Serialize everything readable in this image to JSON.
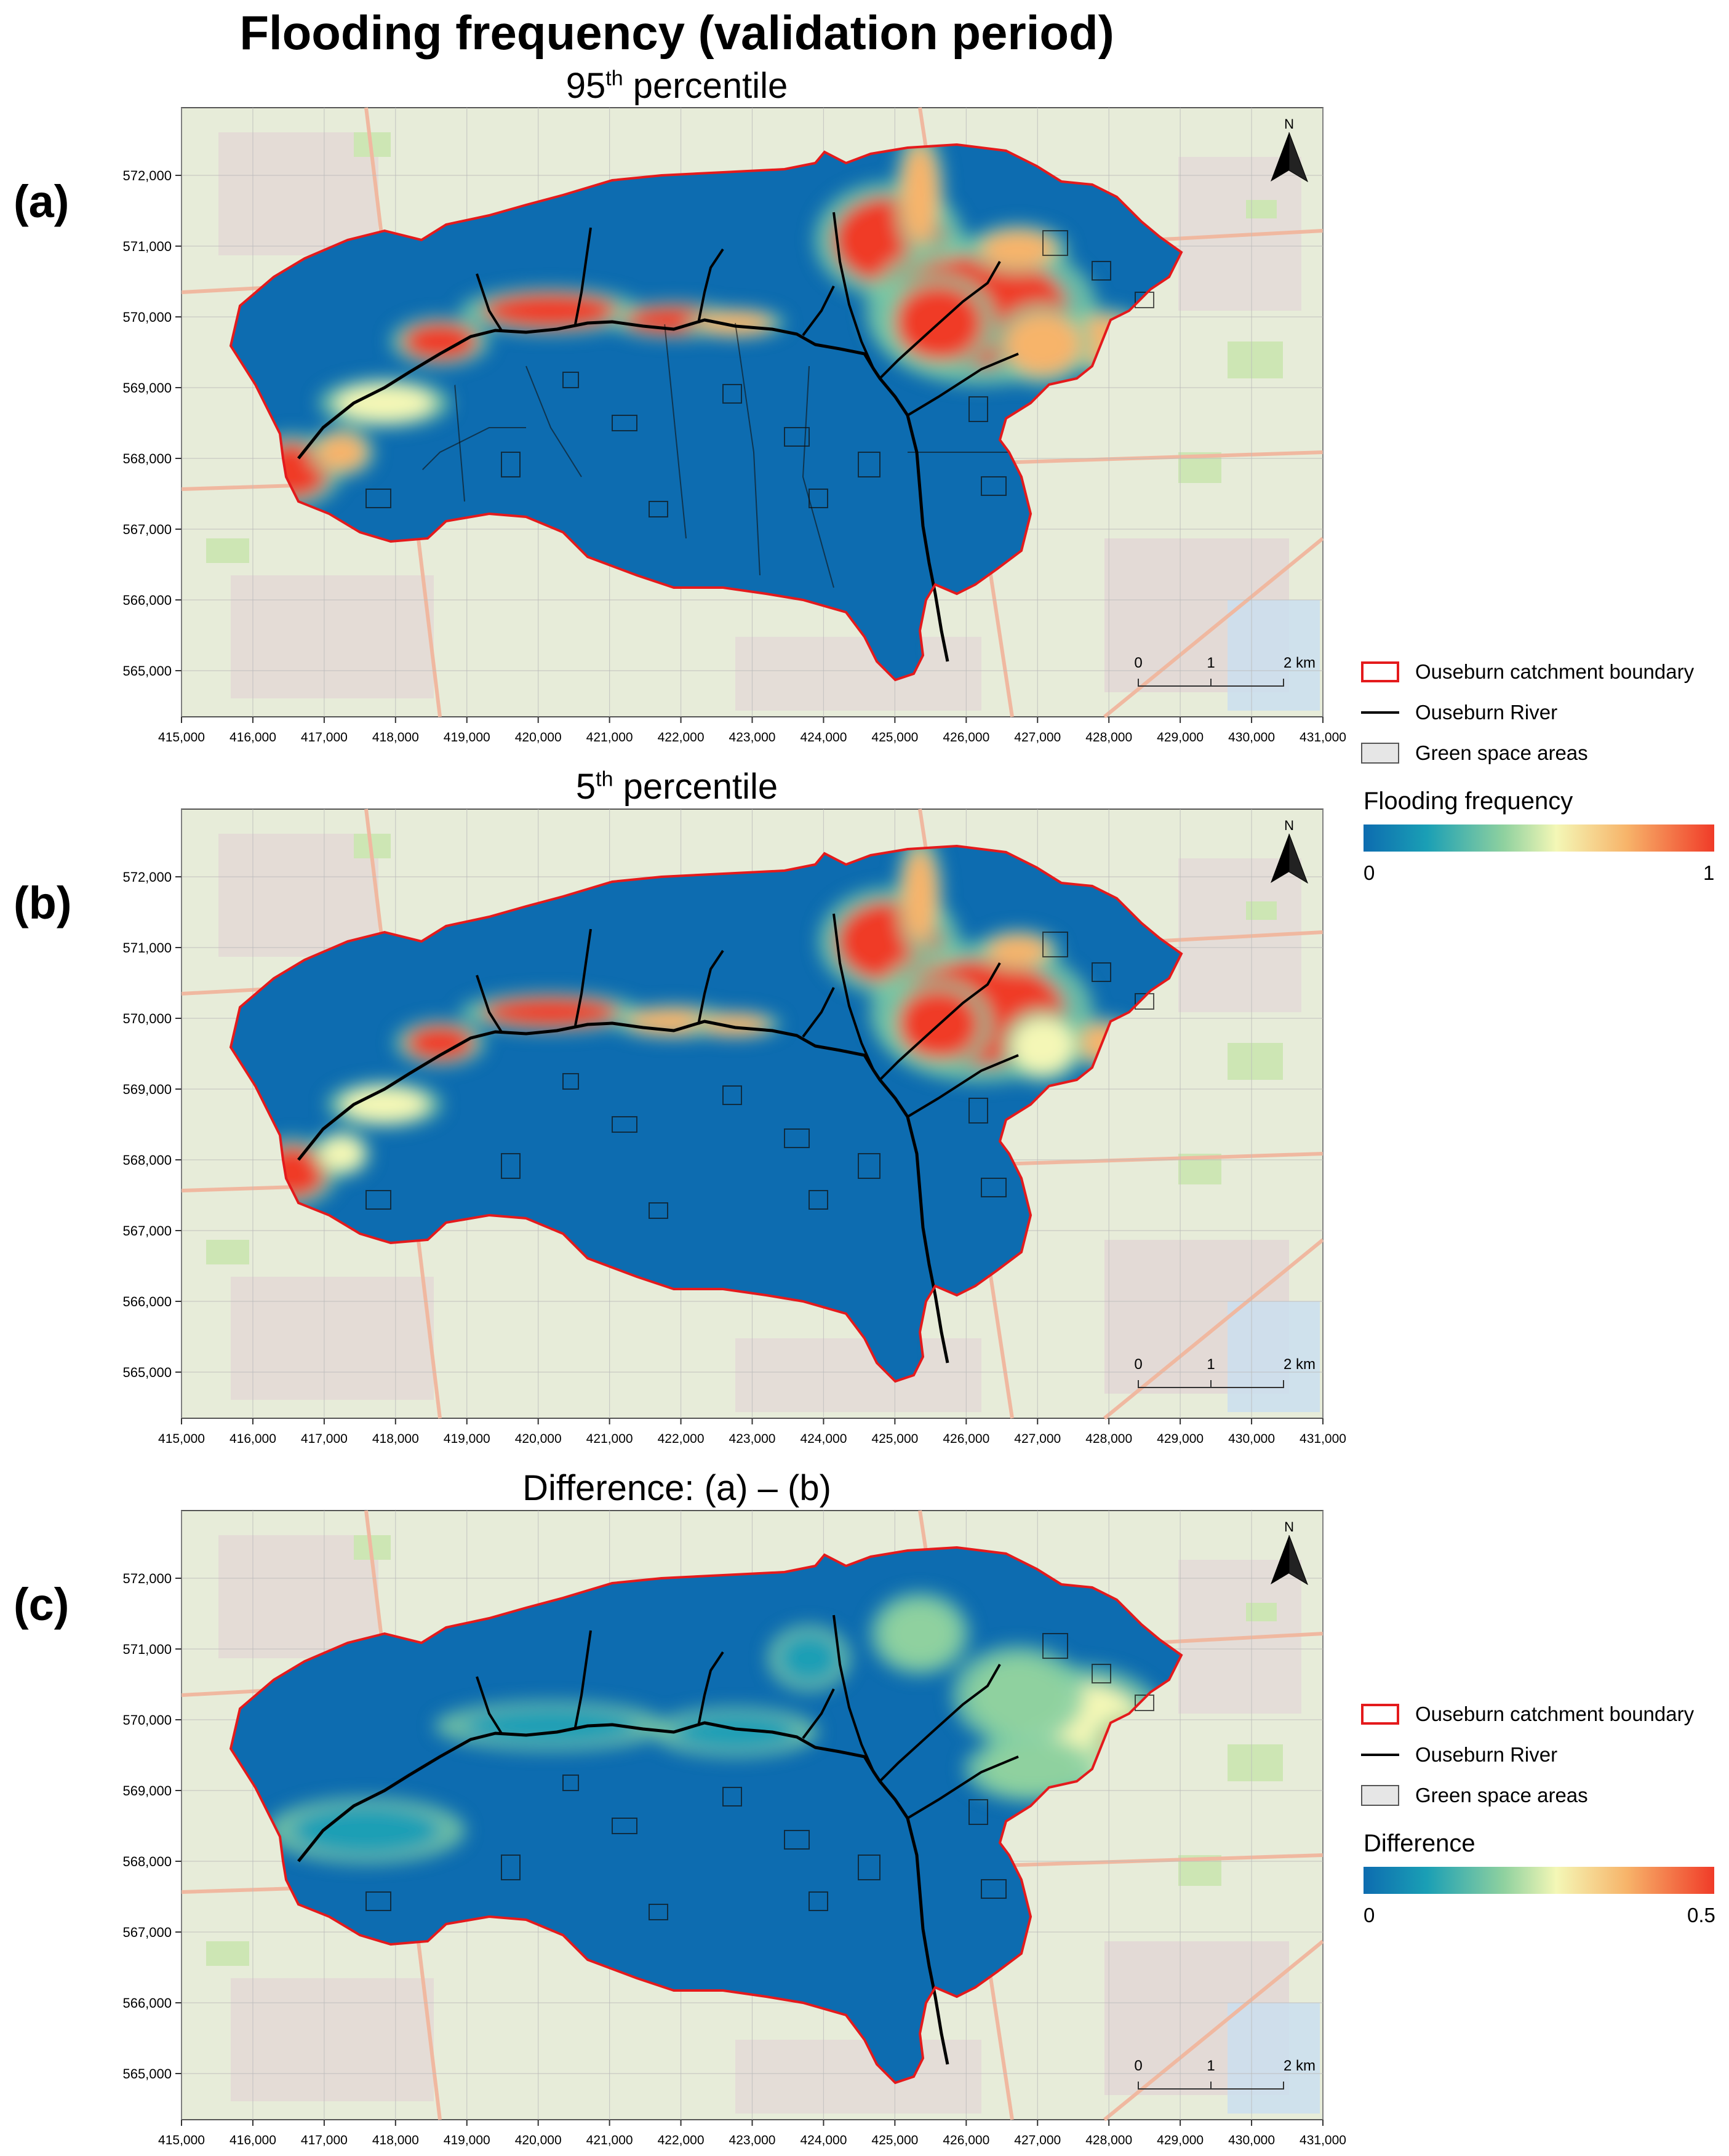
{
  "title": "Flooding frequency (validation period)",
  "panels": [
    {
      "label": "(a)",
      "subtitle_main": "95",
      "subtitle_sup": "th",
      "subtitle_rest": " percentile",
      "variant": "a"
    },
    {
      "label": "(b)",
      "subtitle_main": "5",
      "subtitle_sup": "th",
      "subtitle_rest": " percentile",
      "variant": "b"
    },
    {
      "label": "(c)",
      "subtitle_main": "Difference: (a) – (b)",
      "subtitle_sup": "",
      "subtitle_rest": "",
      "variant": "c"
    }
  ],
  "x_ticks": [
    "415,000",
    "416,000",
    "417,000",
    "418,000",
    "419,000",
    "420,000",
    "421,000",
    "422,000",
    "423,000",
    "424,000",
    "425,000",
    "426,000",
    "427,000",
    "428,000",
    "429,000",
    "430,000",
    "431,000"
  ],
  "y_ticks": [
    "572,000",
    "571,000",
    "570,000",
    "569,000",
    "568,000",
    "567,000",
    "566,000",
    "565,000"
  ],
  "north_label": "N",
  "scalebar": {
    "labels": [
      "0",
      "1",
      "2 km"
    ]
  },
  "legend": {
    "boundary": "Ouseburn catchment boundary",
    "river": "Ouseburn River",
    "green": "Green space areas",
    "ramp_a": {
      "title": "Flooding frequency",
      "min": "0",
      "max": "1"
    },
    "ramp_c": {
      "title": "Difference",
      "min": "0",
      "max": "0.5"
    }
  },
  "colors": {
    "boundary": "#e41a1c",
    "river": "#000000",
    "green": "#e6e6e6",
    "low": "#0d6cb0",
    "high": "#f03b28"
  }
}
